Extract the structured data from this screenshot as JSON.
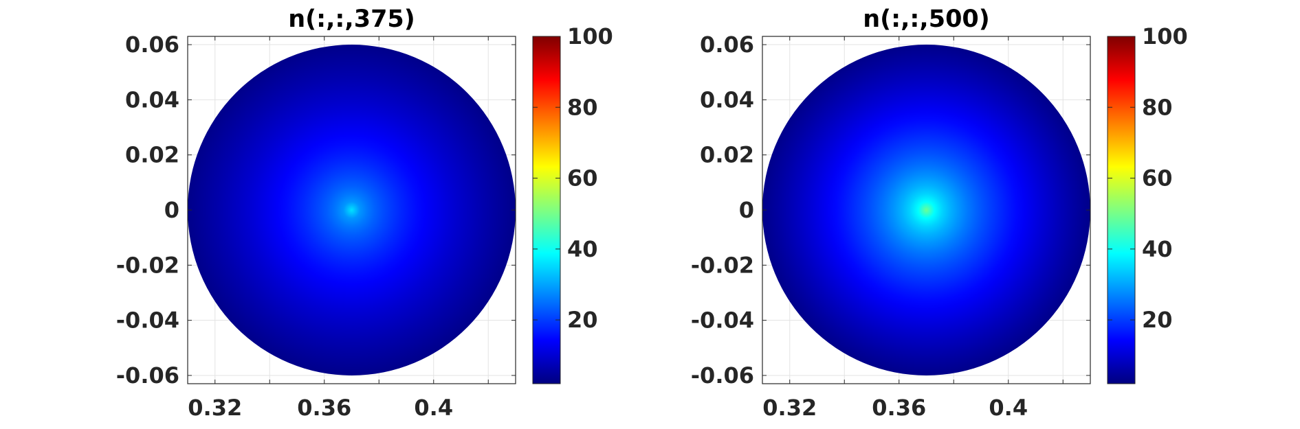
{
  "chart_data": [
    {
      "type": "heatmap",
      "title": "n(:,:,375)",
      "xlabel": "",
      "ylabel": "",
      "xlim": [
        0.31,
        0.43
      ],
      "ylim": [
        -0.063,
        0.063
      ],
      "x_ticks": [
        0.32,
        0.34,
        0.36,
        0.38,
        0.4,
        0.42
      ],
      "x_tick_labels": [
        "0.32",
        "",
        "0.36",
        "",
        "0.4",
        ""
      ],
      "y_ticks": [
        -0.06,
        -0.04,
        -0.02,
        0,
        0.02,
        0.04,
        0.06
      ],
      "y_tick_labels": [
        "-0.06",
        "-0.04",
        "-0.02",
        "0",
        "0.02",
        "0.04",
        "0.06"
      ],
      "grid": true,
      "domain": {
        "shape": "disk",
        "center": [
          0.37,
          0
        ],
        "radius": 0.06
      },
      "field": {
        "center_value": 36,
        "edge_value": 3,
        "profile": "radial"
      },
      "colormap": "jet",
      "color_limits": [
        2,
        100
      ],
      "colorbar_ticks": [
        20,
        40,
        60,
        80,
        100
      ],
      "colorbar_tick_labels": [
        "20",
        "40",
        "60",
        "80",
        "100"
      ]
    },
    {
      "type": "heatmap",
      "title": "n(:,:,500)",
      "xlabel": "",
      "ylabel": "",
      "xlim": [
        0.31,
        0.43
      ],
      "ylim": [
        -0.063,
        0.063
      ],
      "x_ticks": [
        0.32,
        0.34,
        0.36,
        0.38,
        0.4,
        0.42
      ],
      "x_tick_labels": [
        "0.32",
        "",
        "0.36",
        "",
        "0.4",
        ""
      ],
      "y_ticks": [
        -0.06,
        -0.04,
        -0.02,
        0,
        0.02,
        0.04,
        0.06
      ],
      "y_tick_labels": [
        "-0.06",
        "-0.04",
        "-0.02",
        "0",
        "0.02",
        "0.04",
        "0.06"
      ],
      "grid": true,
      "domain": {
        "shape": "disk",
        "center": [
          0.37,
          0
        ],
        "radius": 0.06
      },
      "field": {
        "center_value": 49,
        "edge_value": 3,
        "profile": "radial"
      },
      "colormap": "jet",
      "color_limits": [
        2,
        100
      ],
      "colorbar_ticks": [
        20,
        40,
        60,
        80,
        100
      ],
      "colorbar_tick_labels": [
        "20",
        "40",
        "60",
        "80",
        "100"
      ]
    }
  ]
}
